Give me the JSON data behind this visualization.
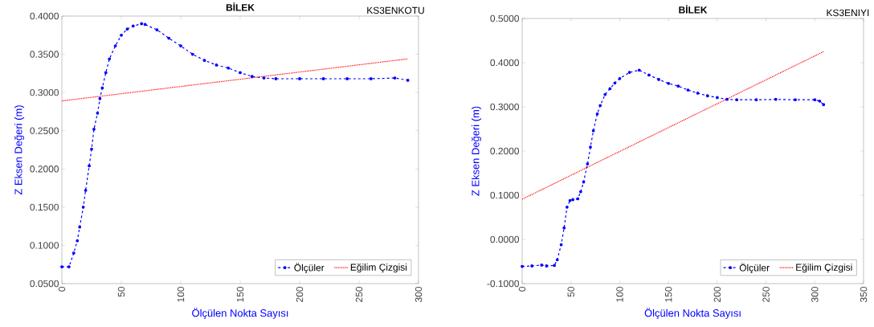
{
  "chart_data": [
    {
      "type": "line",
      "title": "BİLEK",
      "xlabel": "Ölçülen Nokta Sayısı",
      "ylabel": "Z Eksen Değeri (m)",
      "annotations": [
        "KS3ENKOTU"
      ],
      "xlim": [
        0,
        300
      ],
      "xticks": [
        0,
        50,
        100,
        150,
        200,
        250,
        300
      ],
      "ylim": [
        0.05,
        0.4
      ],
      "yticks": [
        {
          "value": 0.05,
          "label": "0.0500"
        },
        {
          "value": 0.1,
          "label": "0.1000"
        },
        {
          "value": 0.15,
          "label": "0.1500"
        },
        {
          "value": 0.2,
          "label": "0.2000"
        },
        {
          "value": 0.25,
          "label": "0.2500"
        },
        {
          "value": 0.3,
          "label": "0.3000"
        },
        {
          "value": 0.35,
          "label": "0.3500"
        },
        {
          "value": 0.4,
          "label": "0.4000"
        }
      ],
      "legend": "bottom right",
      "series": [
        {
          "name": "Ölçüler",
          "color": "#0000ff",
          "marker": "circle",
          "line_style": "dashed",
          "x": [
            0,
            6,
            10,
            13,
            15,
            18,
            20,
            23,
            25,
            27,
            30,
            32,
            34,
            37,
            40,
            45,
            50,
            55,
            60,
            67,
            70,
            80,
            90,
            100,
            110,
            120,
            130,
            140,
            150,
            160,
            170,
            180,
            200,
            220,
            240,
            260,
            280,
            291
          ],
          "values": [
            0.072,
            0.072,
            0.09,
            0.106,
            0.124,
            0.15,
            0.172,
            0.204,
            0.226,
            0.252,
            0.273,
            0.292,
            0.306,
            0.326,
            0.344,
            0.361,
            0.375,
            0.383,
            0.387,
            0.39,
            0.389,
            0.382,
            0.371,
            0.361,
            0.35,
            0.342,
            0.336,
            0.332,
            0.326,
            0.321,
            0.319,
            0.318,
            0.318,
            0.318,
            0.318,
            0.318,
            0.319,
            0.316
          ]
        },
        {
          "name": "Eğilim Çizgisi",
          "color": "#ff0000",
          "marker": "none",
          "line_style": "dotted",
          "x": [
            0,
            291
          ],
          "values": [
            0.289,
            0.344
          ]
        }
      ]
    },
    {
      "type": "line",
      "title": "BİLEK",
      "xlabel": "Ölçülen Nokta Sayısı",
      "ylabel": "Z Eksen Değeri (m)",
      "annotations": [
        "KS3ENIYI"
      ],
      "xlim": [
        0,
        350
      ],
      "xticks": [
        0,
        50,
        100,
        150,
        200,
        250,
        300,
        350
      ],
      "ylim": [
        -0.1,
        0.5
      ],
      "yticks": [
        {
          "value": -0.1,
          "label": "-0.1000"
        },
        {
          "value": 0,
          "label": "0.0000"
        },
        {
          "value": 0.1,
          "label": "0.1000"
        },
        {
          "value": 0.2,
          "label": "0.2000"
        },
        {
          "value": 0.3,
          "label": "0.3000"
        },
        {
          "value": 0.4,
          "label": "0.4000"
        },
        {
          "value": 0.5,
          "label": "0.5000"
        }
      ],
      "legend": "bottom right",
      "series": [
        {
          "name": "Ölçüler",
          "color": "#0000ff",
          "marker": "circle",
          "line_style": "dashed",
          "x": [
            0,
            10,
            20,
            25,
            33,
            36,
            40,
            43,
            46,
            49,
            52,
            57,
            60,
            63,
            67,
            70,
            73,
            77,
            80,
            85,
            90,
            95,
            100,
            110,
            120,
            130,
            140,
            150,
            160,
            170,
            180,
            190,
            200,
            210,
            220,
            240,
            260,
            280,
            300,
            305,
            309
          ],
          "values": [
            -0.061,
            -0.06,
            -0.058,
            -0.06,
            -0.059,
            -0.046,
            -0.012,
            0.026,
            0.073,
            0.088,
            0.09,
            0.092,
            0.108,
            0.13,
            0.171,
            0.209,
            0.246,
            0.284,
            0.303,
            0.328,
            0.341,
            0.354,
            0.364,
            0.378,
            0.383,
            0.372,
            0.362,
            0.353,
            0.347,
            0.338,
            0.331,
            0.325,
            0.321,
            0.317,
            0.316,
            0.316,
            0.317,
            0.316,
            0.316,
            0.313,
            0.305
          ]
        },
        {
          "name": "Eğilim Çizgisi",
          "color": "#ff0000",
          "marker": "none",
          "line_style": "dotted",
          "x": [
            0,
            309
          ],
          "values": [
            0.091,
            0.425
          ]
        }
      ]
    }
  ]
}
